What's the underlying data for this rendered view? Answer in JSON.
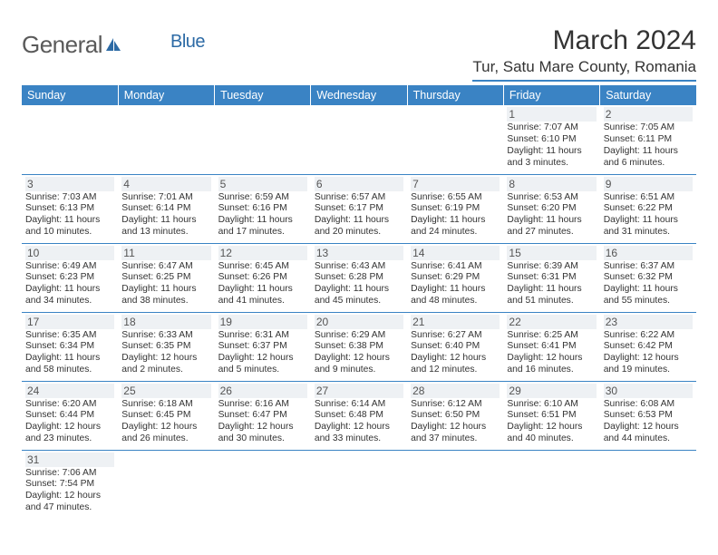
{
  "logo": {
    "text_general": "General",
    "text_blue": "Blue"
  },
  "title": "March 2024",
  "location": "Tur, Satu Mare County, Romania",
  "colors": {
    "header_bg": "#3a83c4",
    "header_text": "#ffffff",
    "border": "#3a83c4",
    "daynum_bg": "#eef1f4",
    "logo_grey": "#5a5a5a",
    "logo_blue": "#2c6aa5",
    "background": "#ffffff"
  },
  "day_headers": [
    "Sunday",
    "Monday",
    "Tuesday",
    "Wednesday",
    "Thursday",
    "Friday",
    "Saturday"
  ],
  "layout": {
    "first_day_column": 5,
    "total_days": 31
  },
  "days": {
    "1": {
      "sunrise": "7:07 AM",
      "sunset": "6:10 PM",
      "dayh": 11,
      "daym": 3
    },
    "2": {
      "sunrise": "7:05 AM",
      "sunset": "6:11 PM",
      "dayh": 11,
      "daym": 6
    },
    "3": {
      "sunrise": "7:03 AM",
      "sunset": "6:13 PM",
      "dayh": 11,
      "daym": 10
    },
    "4": {
      "sunrise": "7:01 AM",
      "sunset": "6:14 PM",
      "dayh": 11,
      "daym": 13
    },
    "5": {
      "sunrise": "6:59 AM",
      "sunset": "6:16 PM",
      "dayh": 11,
      "daym": 17
    },
    "6": {
      "sunrise": "6:57 AM",
      "sunset": "6:17 PM",
      "dayh": 11,
      "daym": 20
    },
    "7": {
      "sunrise": "6:55 AM",
      "sunset": "6:19 PM",
      "dayh": 11,
      "daym": 24
    },
    "8": {
      "sunrise": "6:53 AM",
      "sunset": "6:20 PM",
      "dayh": 11,
      "daym": 27
    },
    "9": {
      "sunrise": "6:51 AM",
      "sunset": "6:22 PM",
      "dayh": 11,
      "daym": 31
    },
    "10": {
      "sunrise": "6:49 AM",
      "sunset": "6:23 PM",
      "dayh": 11,
      "daym": 34
    },
    "11": {
      "sunrise": "6:47 AM",
      "sunset": "6:25 PM",
      "dayh": 11,
      "daym": 38
    },
    "12": {
      "sunrise": "6:45 AM",
      "sunset": "6:26 PM",
      "dayh": 11,
      "daym": 41
    },
    "13": {
      "sunrise": "6:43 AM",
      "sunset": "6:28 PM",
      "dayh": 11,
      "daym": 45
    },
    "14": {
      "sunrise": "6:41 AM",
      "sunset": "6:29 PM",
      "dayh": 11,
      "daym": 48
    },
    "15": {
      "sunrise": "6:39 AM",
      "sunset": "6:31 PM",
      "dayh": 11,
      "daym": 51
    },
    "16": {
      "sunrise": "6:37 AM",
      "sunset": "6:32 PM",
      "dayh": 11,
      "daym": 55
    },
    "17": {
      "sunrise": "6:35 AM",
      "sunset": "6:34 PM",
      "dayh": 11,
      "daym": 58
    },
    "18": {
      "sunrise": "6:33 AM",
      "sunset": "6:35 PM",
      "dayh": 12,
      "daym": 2
    },
    "19": {
      "sunrise": "6:31 AM",
      "sunset": "6:37 PM",
      "dayh": 12,
      "daym": 5
    },
    "20": {
      "sunrise": "6:29 AM",
      "sunset": "6:38 PM",
      "dayh": 12,
      "daym": 9
    },
    "21": {
      "sunrise": "6:27 AM",
      "sunset": "6:40 PM",
      "dayh": 12,
      "daym": 12
    },
    "22": {
      "sunrise": "6:25 AM",
      "sunset": "6:41 PM",
      "dayh": 12,
      "daym": 16
    },
    "23": {
      "sunrise": "6:22 AM",
      "sunset": "6:42 PM",
      "dayh": 12,
      "daym": 19
    },
    "24": {
      "sunrise": "6:20 AM",
      "sunset": "6:44 PM",
      "dayh": 12,
      "daym": 23
    },
    "25": {
      "sunrise": "6:18 AM",
      "sunset": "6:45 PM",
      "dayh": 12,
      "daym": 26
    },
    "26": {
      "sunrise": "6:16 AM",
      "sunset": "6:47 PM",
      "dayh": 12,
      "daym": 30
    },
    "27": {
      "sunrise": "6:14 AM",
      "sunset": "6:48 PM",
      "dayh": 12,
      "daym": 33
    },
    "28": {
      "sunrise": "6:12 AM",
      "sunset": "6:50 PM",
      "dayh": 12,
      "daym": 37
    },
    "29": {
      "sunrise": "6:10 AM",
      "sunset": "6:51 PM",
      "dayh": 12,
      "daym": 40
    },
    "30": {
      "sunrise": "6:08 AM",
      "sunset": "6:53 PM",
      "dayh": 12,
      "daym": 44
    },
    "31": {
      "sunrise": "7:06 AM",
      "sunset": "7:54 PM",
      "dayh": 12,
      "daym": 47
    }
  },
  "labels": {
    "sunrise_prefix": "Sunrise: ",
    "sunset_prefix": "Sunset: ",
    "daylight_prefix": "Daylight: ",
    "hours_word": " hours",
    "and_word": "and ",
    "minutes_word": " minutes."
  }
}
